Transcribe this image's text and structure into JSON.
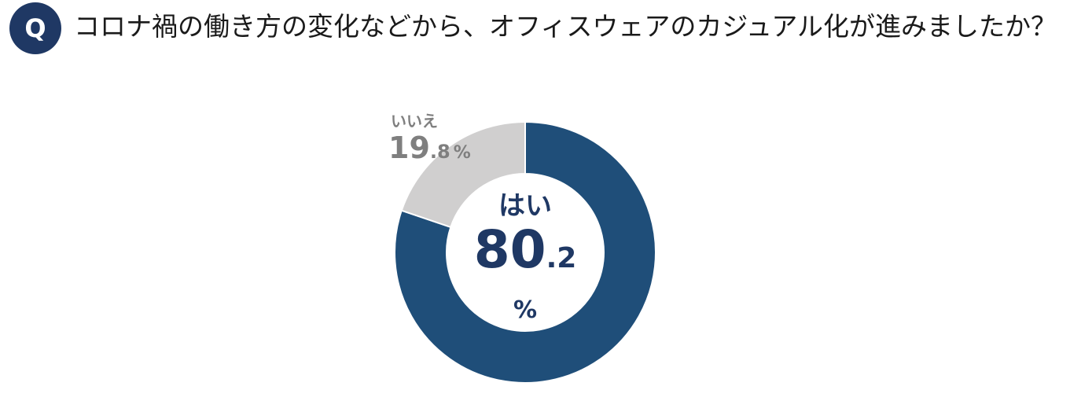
{
  "question": {
    "badge": "Q",
    "text": "コロナ禍の働き方の変化などから、オフィスウェアのカジュアル化が進みましたか？"
  },
  "labels": {
    "yes": {
      "name": "はい",
      "int": "80",
      "dec": ".2",
      "unit": "%"
    },
    "no": {
      "name": "いいえ",
      "int": "19",
      "dec": ".8",
      "unit": "%"
    }
  },
  "colors": {
    "yes": "#1f4e79",
    "no": "#d0cfcf",
    "badge": "#1f3864",
    "no_text": "#7f7f7f",
    "center_text": "#1f3864"
  },
  "chart_data": {
    "type": "pie",
    "style": "donut",
    "categories": [
      "はい",
      "いいえ"
    ],
    "values": [
      80.2,
      19.8
    ],
    "unit": "%"
  }
}
